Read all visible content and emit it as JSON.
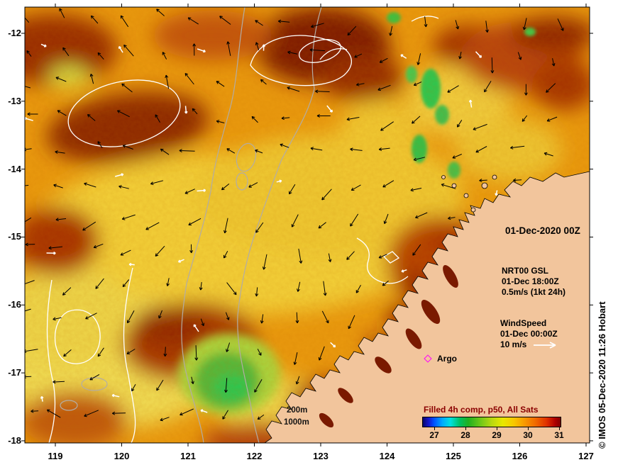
{
  "annotations": {
    "date": "01-Dec-2020 00Z"
  },
  "legends": {
    "gsl": {
      "name": "NRT00 GSL",
      "time": "01-Dec 18:00Z",
      "scale": "0.5m/s (1kt 24h)"
    },
    "wind": {
      "name": "WindSpeed",
      "time": "01-Dec 00:00Z",
      "scale": "10 m/s"
    },
    "argo_label": "Argo",
    "depth_200": "200m",
    "depth_1000": "1000m"
  },
  "axes": {
    "x_ticks": [
      "119",
      "120",
      "121",
      "122",
      "123",
      "124",
      "125",
      "126",
      "127"
    ],
    "y_ticks": [
      "-12",
      "-13",
      "-14",
      "-15",
      "-16",
      "-17",
      "-18"
    ]
  },
  "colorbar": {
    "title": "Filled 4h comp, p50, All Sats",
    "ticks": [
      "27",
      "28",
      "29",
      "30",
      "31"
    ]
  },
  "watermark": "© IMOS 05-Dec-2020 11:26 Hobart",
  "colors": {
    "land": "#f2c59c",
    "ocean_base": "#e9990e",
    "argo": "#ff00ff",
    "colorbar_title": "#8b0000",
    "current_vectors": "#000000",
    "wind_vectors": "#ffffff"
  },
  "chart_data": {
    "type": "heatmap",
    "title": "Filled 4h comp, p50, All Sats (sea surface temperature)",
    "x_axis": {
      "label_implied": "longitude_deg_east",
      "ticks": [
        119,
        120,
        121,
        122,
        123,
        124,
        125,
        126,
        127
      ],
      "range": [
        118.55,
        127.05
      ]
    },
    "y_axis": {
      "label_implied": "latitude_deg_north",
      "ticks": [
        -12,
        -13,
        -14,
        -15,
        -16,
        -17,
        -18
      ],
      "range": [
        -18.15,
        -11.6
      ]
    },
    "colorbar": {
      "ticks_deg_c": [
        27,
        28,
        29,
        30,
        31
      ],
      "range_deg_c": [
        26.6,
        31.4
      ],
      "orientation": "horizontal",
      "position": "bottom-right-inset"
    },
    "overlays": [
      {
        "name": "NRT00 GSL current vectors",
        "valid": "01-Dec 18:00Z",
        "scale": "0.5m/s (1kt 24h)",
        "style": "black arrows"
      },
      {
        "name": "WindSpeed vectors",
        "valid": "01-Dec 00:00Z",
        "scale": "10 m/s",
        "style": "white arrows"
      },
      {
        "name": "Argo float position",
        "style": "magenta marker"
      },
      {
        "name": "bathymetry contours",
        "levels": [
          "200m",
          "1000m"
        ],
        "style": "gray lines"
      },
      {
        "name": "GSL contours",
        "style": "white lines"
      }
    ]
  }
}
